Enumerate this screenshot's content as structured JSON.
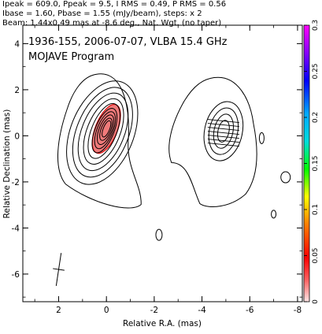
{
  "header": {
    "line1": "Ipeak = 609.0, Ppeak = 9.5, I RMS = 0.49, P RMS = 0.56",
    "line2": "Ibase = 1.60, Pbase = 1.55 (mJy/beam), steps: x 2",
    "line3": "Beam: 1.44x0.49 mas at -8.6 deg., Nat. Wgt. (no taper)"
  },
  "chart_data": {
    "type": "contour",
    "title": "1936-155, 2006-07-07, VLBA 15.4 GHz",
    "subtitle": "MOJAVE Program",
    "xlabel": "Relative R.A. (mas)",
    "ylabel": "Relative Declination (mas)",
    "xlim": [
      3.5,
      -8.2
    ],
    "ylim": [
      -7.2,
      4.8
    ],
    "xticks": [
      2,
      0,
      -2,
      -4,
      -6,
      -8
    ],
    "yticks": [
      4,
      2,
      0,
      -2,
      -4,
      -6
    ],
    "colorbar": {
      "min": 0,
      "max": 0.3,
      "ticks": [
        0,
        0.05,
        0.1,
        0.15,
        0.2,
        0.25,
        0.3
      ],
      "tick_labels": [
        "0",
        "0.05",
        "0.1",
        "0.15",
        "0.2",
        "0.25",
        "0.3"
      ]
    },
    "core": {
      "ra": 0.0,
      "dec": 0.3
    },
    "secondary_component": {
      "ra": -4.9,
      "dec": 0.2
    },
    "beam": {
      "ra": 2.0,
      "dec": -5.8,
      "major": 1.44,
      "minor": 0.49,
      "pa_deg": -8.6
    },
    "colors": {
      "core_fill": "#f07a7a",
      "core_outline": "#dd1111"
    }
  }
}
